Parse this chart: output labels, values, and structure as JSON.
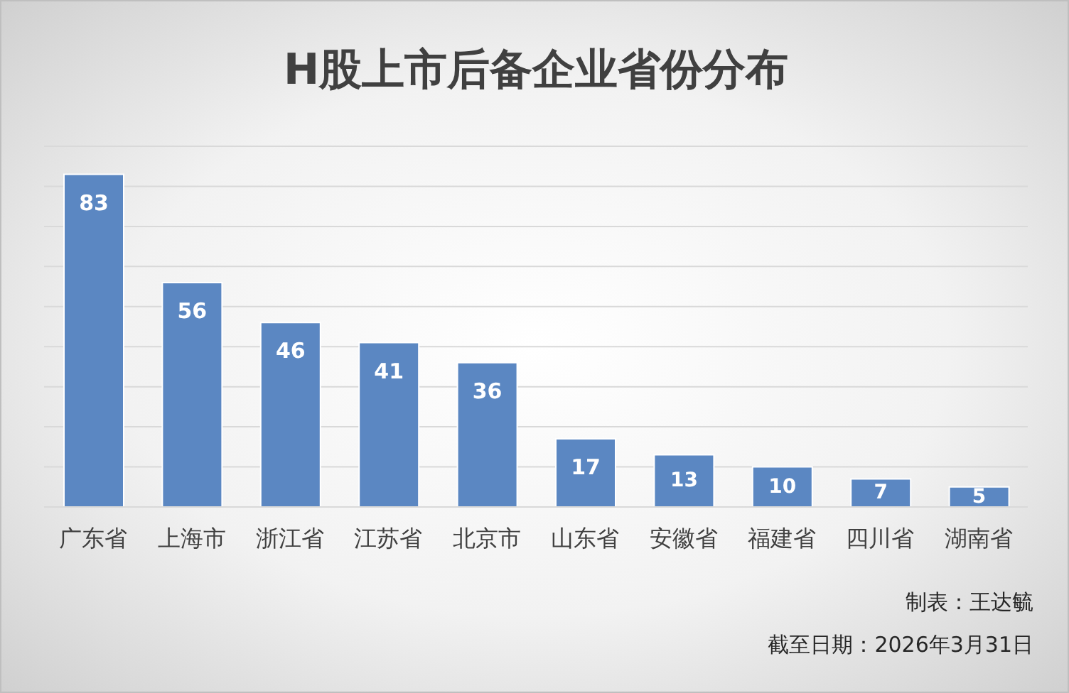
{
  "chart_data": {
    "type": "bar",
    "title": "H股上市后备企业省份分布",
    "categories": [
      "广东省",
      "上海市",
      "浙江省",
      "江苏省",
      "北京市",
      "山东省",
      "安徽省",
      "福建省",
      "四川省",
      "湖南省"
    ],
    "values": [
      83,
      56,
      46,
      41,
      36,
      17,
      13,
      10,
      7,
      5
    ],
    "color": "#5b87c2",
    "ylim": [
      0,
      90
    ],
    "yticks": [
      {
        "value": 0,
        "label": null
      },
      {
        "value": 10,
        "label": null
      },
      {
        "value": 20,
        "label": null
      },
      {
        "value": 30,
        "label": null
      },
      {
        "value": 40,
        "label": null
      },
      {
        "value": 50,
        "label": null
      },
      {
        "value": 60,
        "label": null
      },
      {
        "value": 70,
        "label": null
      },
      {
        "value": 80,
        "label": null
      },
      {
        "value": 90,
        "label": null
      }
    ],
    "grid": "y",
    "tick_labels": "x",
    "data_labels": true,
    "annotations": [
      "制表：王达毓",
      "截至日期：2026年3月31日"
    ]
  }
}
